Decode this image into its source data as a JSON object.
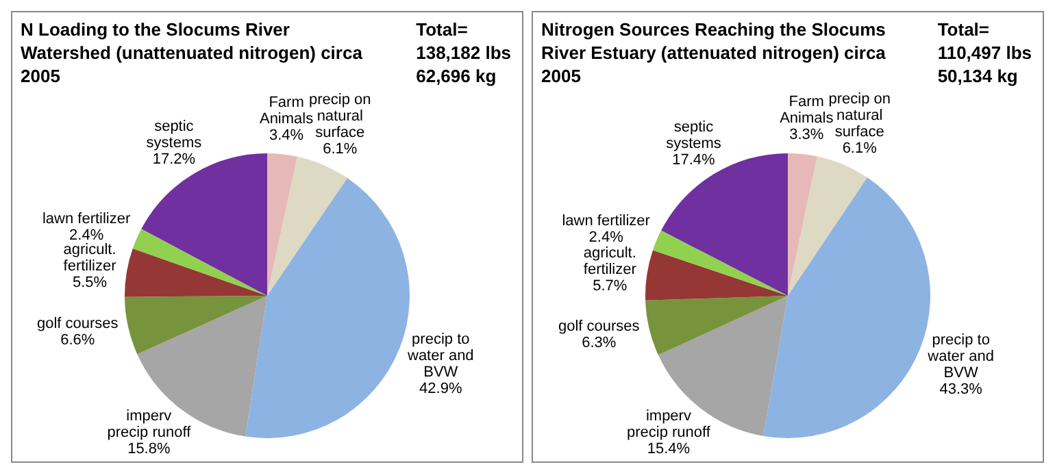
{
  "chart_data": [
    {
      "type": "pie",
      "title": "N Loading to the Slocums River Watershed (unattenuated nitrogen) circa 2005",
      "categories": [
        "Farm Animals",
        "precip on natural surface",
        "precip to water and BVW",
        "imperv precip runoff",
        "golf courses",
        "agricult. fertilizer",
        "lawn fertilizer",
        "septic systems"
      ],
      "values": [
        3.4,
        6.1,
        42.9,
        15.8,
        6.6,
        5.5,
        2.4,
        17.2
      ],
      "colors": [
        "#e6b9b8",
        "#ddd9c3",
        "#8db3e2",
        "#a6a6a6",
        "#77933c",
        "#953735",
        "#92d050",
        "#7030a0"
      ],
      "value_labels": [
        "3.4%",
        "6.1%",
        "42.9%",
        "15.8%",
        "6.6%",
        "5.5%",
        "2.4%",
        "17.2%"
      ],
      "annotations": [
        "Total=",
        "138,182 lbs",
        "62,696 kg"
      ]
    },
    {
      "type": "pie",
      "title": "Nitrogen Sources Reaching the Slocums River Estuary  (attenuated nitrogen) circa 2005",
      "categories": [
        "Farm Animals",
        "precip on natural surface",
        "precip to water and BVW",
        "imperv precip runoff",
        "golf courses",
        "agricult. fertilizer",
        "lawn fertilizer",
        "septic systems"
      ],
      "values": [
        3.3,
        6.1,
        43.3,
        15.4,
        6.3,
        5.7,
        2.4,
        17.4
      ],
      "colors": [
        "#e6b9b8",
        "#ddd9c3",
        "#8db3e2",
        "#a6a6a6",
        "#77933c",
        "#953735",
        "#92d050",
        "#7030a0"
      ],
      "value_labels": [
        "3.3%",
        "6.1%",
        "43.3%",
        "15.4%",
        "6.3%",
        "5.7%",
        "2.4%",
        "17.4%"
      ],
      "annotations": [
        "Total=",
        "110,497 lbs",
        "50,134 kg"
      ]
    }
  ]
}
